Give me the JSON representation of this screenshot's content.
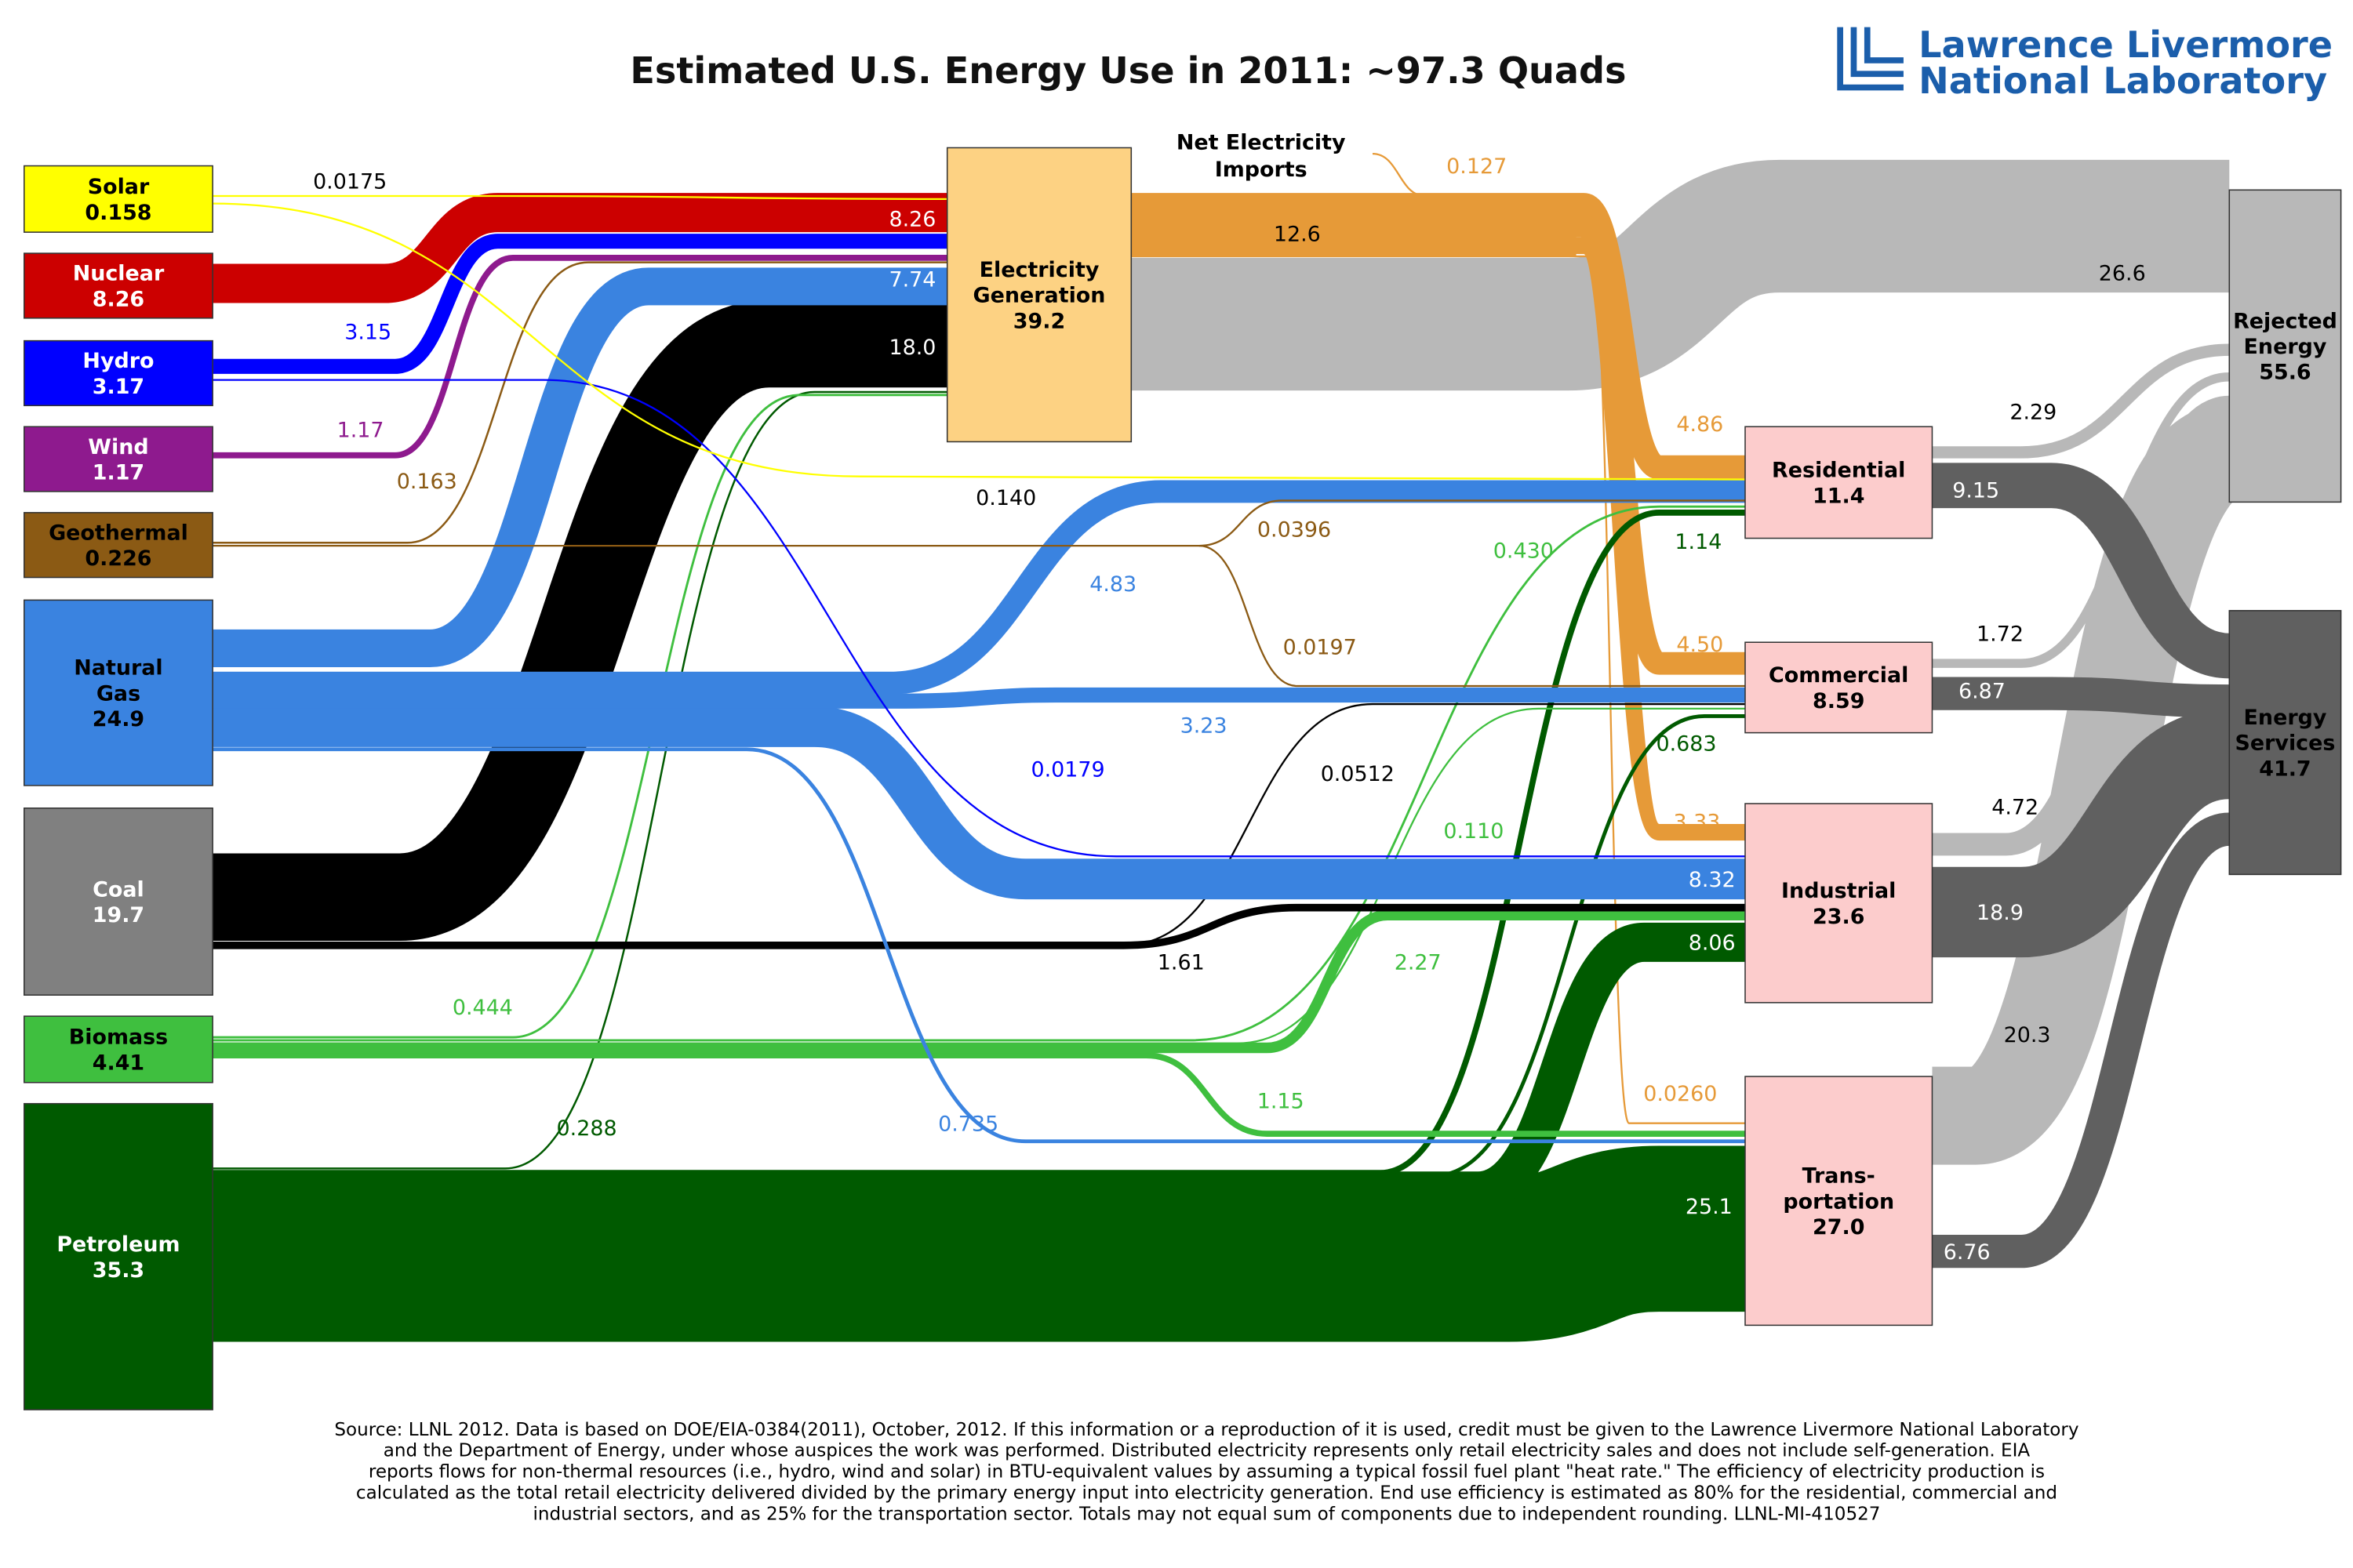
{
  "title": "Estimated U.S. Energy Use in 2011: ~97.3 Quads",
  "logo": {
    "line1": "Lawrence Livermore",
    "line2": "National Laboratory",
    "color": "#1b5eab"
  },
  "imports_label": [
    "Net Electricity",
    "Imports"
  ],
  "footnote": [
    "Source: LLNL 2012. Data is based on DOE/EIA-0384(2011), October, 2012. If this information or a reproduction of it is used, credit must be given to the Lawrence Livermore National Laboratory",
    "and the Department of Energy, under whose auspices the work was performed. Distributed electricity represents only retail electricity sales and does not include self-generation.  EIA",
    "reports flows for non-thermal resources (i.e., hydro, wind and solar) in BTU-equivalent values by assuming a typical fossil fuel plant \"heat rate.\"  The efficiency of electricity production is",
    "calculated as the total retail electricity delivered divided by the primary energy input into electricity generation.  End use efficiency is estimated as 80% for the residential, commercial and",
    "industrial sectors, and as 25% for the transportation sector.  Totals may not equal sum of components due to independent rounding. LLNL-MI-410527"
  ],
  "chart_data": {
    "type": "sankey",
    "units": "Quads",
    "nodes": [
      {
        "id": "solar",
        "name": [
          "Solar"
        ],
        "value": "0.158",
        "color": "#ffff00",
        "text": "#000000"
      },
      {
        "id": "nuclear",
        "name": [
          "Nuclear"
        ],
        "value": "8.26",
        "color": "#cc0000",
        "text": "#ffffff"
      },
      {
        "id": "hydro",
        "name": [
          "Hydro"
        ],
        "value": "3.17",
        "color": "#0000ff",
        "text": "#ffffff"
      },
      {
        "id": "wind",
        "name": [
          "Wind"
        ],
        "value": "1.17",
        "color": "#8e1a8e",
        "text": "#ffffff"
      },
      {
        "id": "geothermal",
        "name": [
          "Geothermal"
        ],
        "value": "0.226",
        "color": "#8b5a14",
        "text": "#000000"
      },
      {
        "id": "natural_gas",
        "name": [
          "Natural",
          "Gas"
        ],
        "value": "24.9",
        "color": "#3a83e0",
        "text": "#000000"
      },
      {
        "id": "coal",
        "name": [
          "Coal"
        ],
        "value": "19.7",
        "color": "#808080",
        "text": "#ffffff"
      },
      {
        "id": "biomass",
        "name": [
          "Biomass"
        ],
        "value": "4.41",
        "color": "#3fbf3f",
        "text": "#000000"
      },
      {
        "id": "petroleum",
        "name": [
          "Petroleum"
        ],
        "value": "35.3",
        "color": "#005a00",
        "text": "#ffffff"
      },
      {
        "id": "electricity",
        "name": [
          "Electricity",
          "Generation"
        ],
        "value": "39.2",
        "color": "#fdd283",
        "text": "#000000"
      },
      {
        "id": "residential",
        "name": [
          "Residential"
        ],
        "value": "11.4",
        "color": "#fccccc",
        "text": "#000000"
      },
      {
        "id": "commercial",
        "name": [
          "Commercial"
        ],
        "value": "8.59",
        "color": "#fccccc",
        "text": "#000000"
      },
      {
        "id": "industrial",
        "name": [
          "Industrial"
        ],
        "value": "23.6",
        "color": "#fccccc",
        "text": "#000000"
      },
      {
        "id": "transportation",
        "name": [
          "Trans-",
          "portation"
        ],
        "value": "27.0",
        "color": "#fccccc",
        "text": "#000000"
      },
      {
        "id": "rejected",
        "name": [
          "Rejected",
          "Energy"
        ],
        "value": "55.6",
        "color": "#b8b8b8",
        "text": "#000000"
      },
      {
        "id": "services",
        "name": [
          "Energy",
          "Services"
        ],
        "value": "41.7",
        "color": "#606060",
        "text": "#000000"
      }
    ],
    "flows": [
      {
        "from": "solar",
        "to": "electricity",
        "value": 0.0175,
        "label": "0.0175",
        "color": "#ffff00",
        "label_color": "#000000"
      },
      {
        "from": "solar",
        "to": "residential",
        "value": 0.14,
        "label": "0.140",
        "color": "#ffff00",
        "label_color": "#000000"
      },
      {
        "from": "nuclear",
        "to": "electricity",
        "value": 8.26,
        "label": "8.26",
        "color": "#cc0000",
        "label_color": "#ffffff"
      },
      {
        "from": "hydro",
        "to": "electricity",
        "value": 3.15,
        "label": "3.15",
        "color": "#0000ff",
        "label_color": "#0000ff"
      },
      {
        "from": "hydro",
        "to": "industrial",
        "value": 0.0179,
        "label": "0.0179",
        "color": "#0000ff",
        "label_color": "#0000ff"
      },
      {
        "from": "wind",
        "to": "electricity",
        "value": 1.17,
        "label": "1.17",
        "color": "#8e1a8e",
        "label_color": "#8e1a8e"
      },
      {
        "from": "geothermal",
        "to": "electricity",
        "value": 0.163,
        "label": "0.163",
        "color": "#8b5a14",
        "label_color": "#8b5a14"
      },
      {
        "from": "geothermal",
        "to": "residential",
        "value": 0.0396,
        "label": "0.0396",
        "color": "#8b5a14",
        "label_color": "#8b5a14"
      },
      {
        "from": "geothermal",
        "to": "commercial",
        "value": 0.0197,
        "label": "0.0197",
        "color": "#8b5a14",
        "label_color": "#8b5a14"
      },
      {
        "from": "natural_gas",
        "to": "electricity",
        "value": 7.74,
        "label": "7.74",
        "color": "#3a83e0",
        "label_color": "#ffffff"
      },
      {
        "from": "natural_gas",
        "to": "residential",
        "value": 4.83,
        "label": "4.83",
        "color": "#3a83e0",
        "label_color": "#3a83e0"
      },
      {
        "from": "natural_gas",
        "to": "commercial",
        "value": 3.23,
        "label": "3.23",
        "color": "#3a83e0",
        "label_color": "#3a83e0"
      },
      {
        "from": "natural_gas",
        "to": "industrial",
        "value": 8.32,
        "label": "8.32",
        "color": "#3a83e0",
        "label_color": "#ffffff"
      },
      {
        "from": "natural_gas",
        "to": "transportation",
        "value": 0.735,
        "label": "0.735",
        "color": "#3a83e0",
        "label_color": "#3a83e0"
      },
      {
        "from": "coal",
        "to": "electricity",
        "value": 18.0,
        "label": "18.0",
        "color": "#000000",
        "label_color": "#ffffff"
      },
      {
        "from": "coal",
        "to": "industrial",
        "value": 1.61,
        "label": "1.61",
        "color": "#000000",
        "label_color": "#000000"
      },
      {
        "from": "coal",
        "to": "commercial",
        "value": 0.0512,
        "label": "0.0512",
        "color": "#000000",
        "label_color": "#000000"
      },
      {
        "from": "biomass",
        "to": "electricity",
        "value": 0.444,
        "label": "0.444",
        "color": "#3fbf3f",
        "label_color": "#3fbf3f"
      },
      {
        "from": "biomass",
        "to": "residential",
        "value": 0.43,
        "label": "0.430",
        "color": "#3fbf3f",
        "label_color": "#3fbf3f"
      },
      {
        "from": "biomass",
        "to": "commercial",
        "value": 0.11,
        "label": "0.110",
        "color": "#3fbf3f",
        "label_color": "#3fbf3f"
      },
      {
        "from": "biomass",
        "to": "industrial",
        "value": 2.27,
        "label": "2.27",
        "color": "#3fbf3f",
        "label_color": "#3fbf3f"
      },
      {
        "from": "biomass",
        "to": "transportation",
        "value": 1.15,
        "label": "1.15",
        "color": "#3fbf3f",
        "label_color": "#3fbf3f"
      },
      {
        "from": "petroleum",
        "to": "electricity",
        "value": 0.288,
        "label": "0.288",
        "color": "#005a00",
        "label_color": "#005a00"
      },
      {
        "from": "petroleum",
        "to": "residential",
        "value": 1.14,
        "label": "1.14",
        "color": "#005a00",
        "label_color": "#005a00"
      },
      {
        "from": "petroleum",
        "to": "commercial",
        "value": 0.683,
        "label": "0.683",
        "color": "#005a00",
        "label_color": "#005a00"
      },
      {
        "from": "petroleum",
        "to": "industrial",
        "value": 8.06,
        "label": "8.06",
        "color": "#005a00",
        "label_color": "#ffffff"
      },
      {
        "from": "petroleum",
        "to": "transportation",
        "value": 25.1,
        "label": "25.1",
        "color": "#005a00",
        "label_color": "#ffffff"
      },
      {
        "from": "electricity",
        "to": "distribution",
        "value": 12.6,
        "label": "12.6",
        "color": "#e69a38",
        "label_color": "#000000"
      },
      {
        "from": "net_imports",
        "to": "distribution",
        "value": 0.127,
        "label": "0.127",
        "color": "#e69a38",
        "label_color": "#e69a38"
      },
      {
        "from": "distribution",
        "to": "residential",
        "value": 4.86,
        "label": "4.86",
        "color": "#e69a38",
        "label_color": "#e69a38"
      },
      {
        "from": "distribution",
        "to": "commercial",
        "value": 4.5,
        "label": "4.50",
        "color": "#e69a38",
        "label_color": "#e69a38"
      },
      {
        "from": "distribution",
        "to": "industrial",
        "value": 3.33,
        "label": "3.33",
        "color": "#e69a38",
        "label_color": "#e69a38"
      },
      {
        "from": "distribution",
        "to": "transportation",
        "value": 0.026,
        "label": "0.0260",
        "color": "#e69a38",
        "label_color": "#e69a38"
      },
      {
        "from": "electricity",
        "to": "rejected",
        "value": 26.6,
        "label": "26.6",
        "color": "#b8b8b8",
        "label_color": "#000000"
      },
      {
        "from": "residential",
        "to": "rejected",
        "value": 2.29,
        "label": "2.29",
        "color": "#b8b8b8",
        "label_color": "#000000"
      },
      {
        "from": "residential",
        "to": "services",
        "value": 9.15,
        "label": "9.15",
        "color": "#606060",
        "label_color": "#ffffff"
      },
      {
        "from": "commercial",
        "to": "rejected",
        "value": 1.72,
        "label": "1.72",
        "color": "#b8b8b8",
        "label_color": "#000000"
      },
      {
        "from": "commercial",
        "to": "services",
        "value": 6.87,
        "label": "6.87",
        "color": "#606060",
        "label_color": "#ffffff"
      },
      {
        "from": "industrial",
        "to": "rejected",
        "value": 4.72,
        "label": "4.72",
        "color": "#b8b8b8",
        "label_color": "#000000"
      },
      {
        "from": "industrial",
        "to": "services",
        "value": 18.9,
        "label": "18.9",
        "color": "#606060",
        "label_color": "#ffffff"
      },
      {
        "from": "transportation",
        "to": "rejected",
        "value": 20.3,
        "label": "20.3",
        "color": "#b8b8b8",
        "label_color": "#000000"
      },
      {
        "from": "transportation",
        "to": "services",
        "value": 6.76,
        "label": "6.76",
        "color": "#606060",
        "label_color": "#ffffff"
      }
    ]
  }
}
